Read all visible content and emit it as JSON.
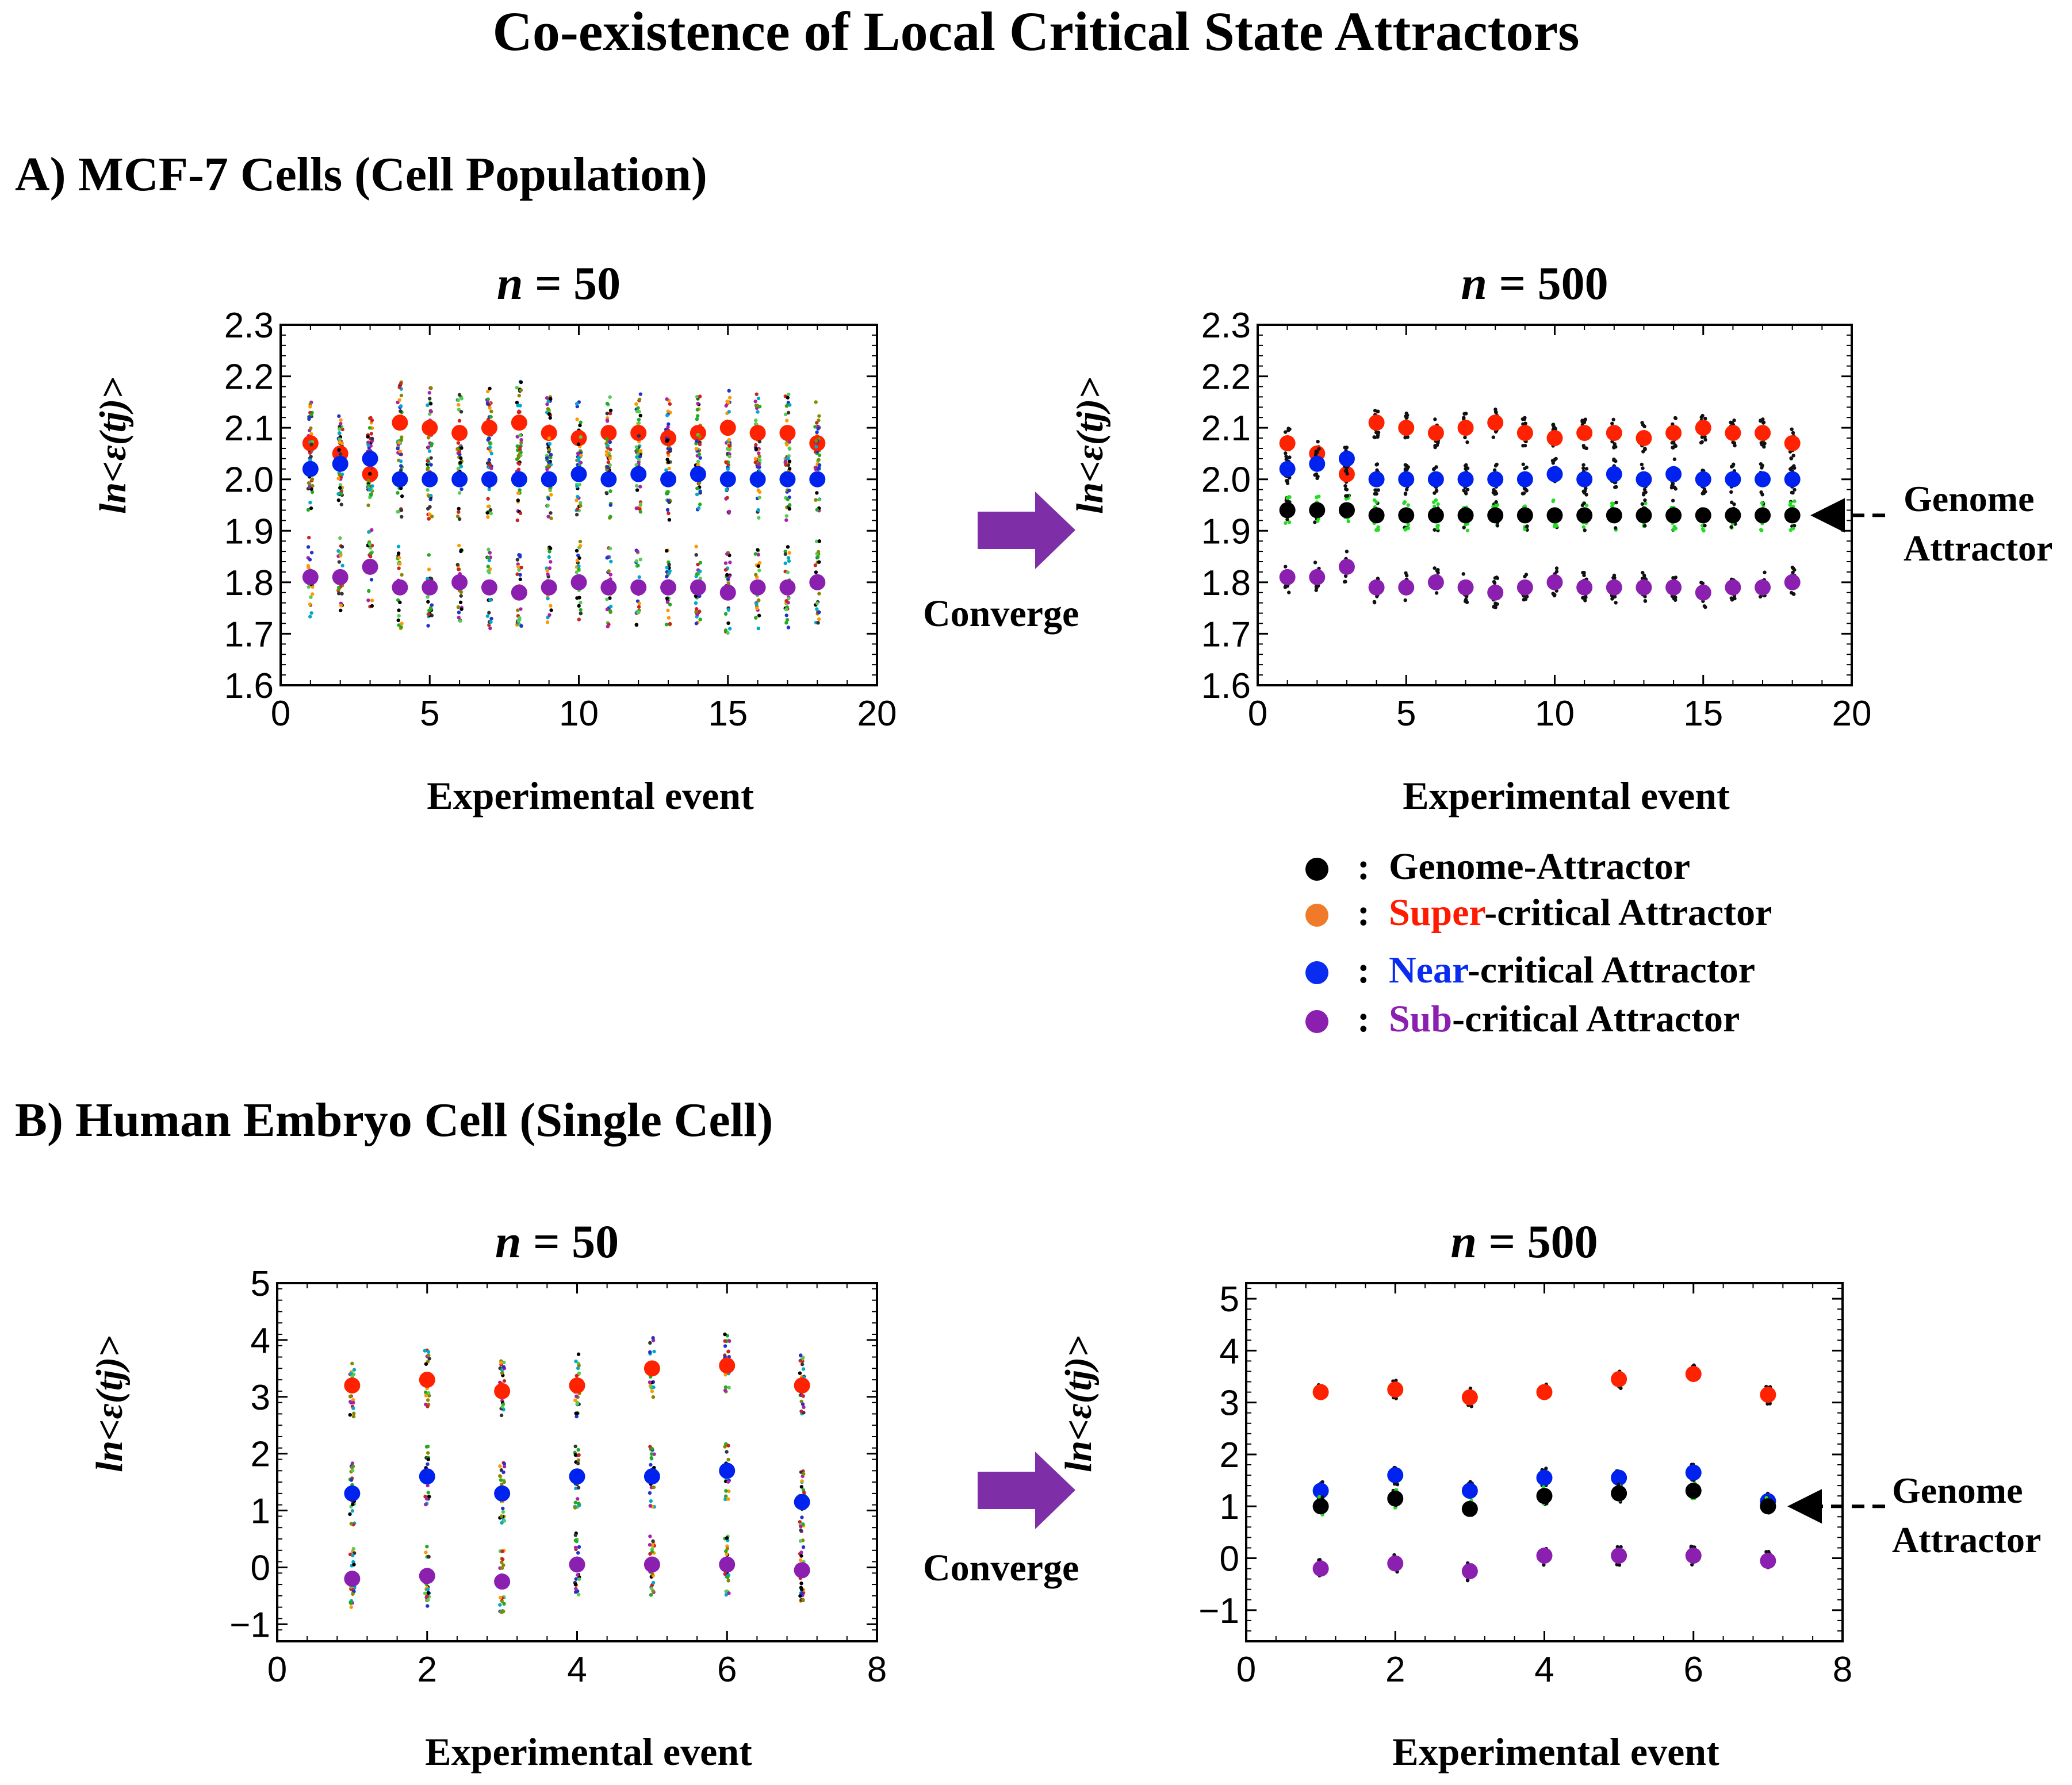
{
  "page_title": "Co-existence of Local Critical State Attractors",
  "sections": {
    "a": "A)   MCF-7 Cells (Cell Population)",
    "b": "B)   Human Embryo Cell (Single Cell)"
  },
  "converge_label": "Converge",
  "genome_note": {
    "line1": "Genome",
    "line2": "Attractor"
  },
  "colors": {
    "genome": "#000000",
    "super": "#ff2200",
    "near": "#0022ee",
    "sub": "#8a1fb0",
    "green": "#22dd22",
    "arrow": "#7e2fa8"
  },
  "legend": [
    {
      "sep": ":",
      "highlight": "",
      "rest": "Genome-Attractor",
      "dot_color": "#000000",
      "hl_color": "#000000"
    },
    {
      "sep": ":",
      "highlight": "Super",
      "rest": "-critical Attractor",
      "dot_color": "#f07a2a",
      "hl_color": "#ff1a00"
    },
    {
      "sep": ":",
      "highlight": "Near",
      "rest": "-critical Attractor",
      "dot_color": "#0a2cf0",
      "hl_color": "#0a2cf0"
    },
    {
      "sep": ":",
      "highlight": "Sub",
      "rest": "-critical Attractor",
      "dot_color": "#8a1fb0",
      "hl_color": "#8a1fb0"
    }
  ],
  "chart_data": [
    {
      "id": "a50",
      "type": "scatter",
      "title_n": "n",
      "title_rest": " = 50",
      "xlabel": "Experimental event",
      "ylabel": "ln<ε(tj)>",
      "xlim": [
        0,
        20
      ],
      "ylim": [
        1.6,
        2.3
      ],
      "xticks": [
        "0",
        "5",
        "10",
        "15",
        "20"
      ],
      "yticks": [
        "1.6",
        "1.7",
        "1.8",
        "1.9",
        "2.0",
        "2.1",
        "2.2",
        "2.3"
      ],
      "x": [
        1,
        2,
        3,
        4,
        5,
        6,
        7,
        8,
        9,
        10,
        11,
        12,
        13,
        14,
        15,
        16,
        17,
        18
      ],
      "series": [
        {
          "name": "Super-critical Attractor",
          "values": [
            2.07,
            2.05,
            2.01,
            2.11,
            2.1,
            2.09,
            2.1,
            2.11,
            2.09,
            2.08,
            2.09,
            2.09,
            2.08,
            2.09,
            2.1,
            2.09,
            2.09,
            2.07
          ]
        },
        {
          "name": "Near-critical Attractor",
          "values": [
            2.02,
            2.03,
            2.04,
            2.0,
            2.0,
            2.0,
            2.0,
            2.0,
            2.0,
            2.01,
            2.0,
            2.01,
            2.0,
            2.01,
            2.0,
            2.0,
            2.0,
            2.0
          ]
        },
        {
          "name": "Sub-critical Attractor",
          "values": [
            1.81,
            1.81,
            1.83,
            1.79,
            1.79,
            1.8,
            1.79,
            1.78,
            1.79,
            1.8,
            1.79,
            1.79,
            1.79,
            1.79,
            1.78,
            1.79,
            1.79,
            1.8
          ]
        }
      ]
    },
    {
      "id": "a500",
      "type": "scatter",
      "title_n": "n",
      "title_rest": " = 500",
      "xlabel": "Experimental event",
      "ylabel": "ln<ε(tj)>",
      "xlim": [
        0,
        20
      ],
      "ylim": [
        1.6,
        2.3
      ],
      "xticks": [
        "0",
        "5",
        "10",
        "15",
        "20"
      ],
      "yticks": [
        "1.6",
        "1.7",
        "1.8",
        "1.9",
        "2.0",
        "2.1",
        "2.2",
        "2.3"
      ],
      "x": [
        1,
        2,
        3,
        4,
        5,
        6,
        7,
        8,
        9,
        10,
        11,
        12,
        13,
        14,
        15,
        16,
        17,
        18
      ],
      "series": [
        {
          "name": "Super-critical Attractor",
          "values": [
            2.07,
            2.05,
            2.01,
            2.11,
            2.1,
            2.09,
            2.1,
            2.11,
            2.09,
            2.08,
            2.09,
            2.09,
            2.08,
            2.09,
            2.1,
            2.09,
            2.09,
            2.07
          ]
        },
        {
          "name": "Near-critical Attractor",
          "values": [
            2.02,
            2.03,
            2.04,
            2.0,
            2.0,
            2.0,
            2.0,
            2.0,
            2.0,
            2.01,
            2.0,
            2.01,
            2.0,
            2.01,
            2.0,
            2.0,
            2.0,
            2.0
          ]
        },
        {
          "name": "Genome-Attractor",
          "values": [
            1.94,
            1.94,
            1.94,
            1.93,
            1.93,
            1.93,
            1.93,
            1.93,
            1.93,
            1.93,
            1.93,
            1.93,
            1.93,
            1.93,
            1.93,
            1.93,
            1.93,
            1.93
          ]
        },
        {
          "name": "Sub-critical Attractor",
          "values": [
            1.81,
            1.81,
            1.83,
            1.79,
            1.79,
            1.8,
            1.79,
            1.78,
            1.79,
            1.8,
            1.79,
            1.79,
            1.79,
            1.79,
            1.78,
            1.79,
            1.79,
            1.8
          ]
        }
      ]
    },
    {
      "id": "b50",
      "type": "scatter",
      "title_n": "n",
      "title_rest": " = 50",
      "xlabel": "Experimental event",
      "ylabel": "ln<ε(tj)>",
      "xlim": [
        0,
        8
      ],
      "ylim": [
        -1.3,
        5
      ],
      "xticks": [
        "0",
        "2",
        "4",
        "6",
        "8"
      ],
      "yticks": [
        "−1",
        "0",
        "1",
        "2",
        "3",
        "4",
        "5"
      ],
      "x": [
        1,
        2,
        3,
        4,
        5,
        6,
        7
      ],
      "series": [
        {
          "name": "Super-critical Attractor",
          "values": [
            3.2,
            3.3,
            3.1,
            3.2,
            3.5,
            3.55,
            3.2
          ]
        },
        {
          "name": "Near-critical Attractor",
          "values": [
            1.3,
            1.6,
            1.3,
            1.6,
            1.6,
            1.7,
            1.15
          ]
        },
        {
          "name": "Sub-critical Attractor",
          "values": [
            -0.2,
            -0.15,
            -0.25,
            0.05,
            0.05,
            0.05,
            -0.05
          ]
        }
      ]
    },
    {
      "id": "b500",
      "type": "scatter",
      "title_n": "n",
      "title_rest": " = 500",
      "xlabel": "Experimental event",
      "ylabel": "ln<ε(tj)>",
      "xlim": [
        0,
        8
      ],
      "ylim": [
        -1.6,
        5.3
      ],
      "xticks": [
        "0",
        "2",
        "4",
        "6",
        "8"
      ],
      "yticks": [
        "−1",
        "0",
        "1",
        "2",
        "3",
        "4",
        "5"
      ],
      "x": [
        1,
        2,
        3,
        4,
        5,
        6,
        7
      ],
      "series": [
        {
          "name": "Super-critical Attractor",
          "values": [
            3.2,
            3.25,
            3.1,
            3.2,
            3.45,
            3.55,
            3.15
          ]
        },
        {
          "name": "Near-critical Attractor",
          "values": [
            1.3,
            1.6,
            1.3,
            1.55,
            1.55,
            1.65,
            1.1
          ]
        },
        {
          "name": "Genome-Attractor",
          "values": [
            1.0,
            1.15,
            0.95,
            1.2,
            1.25,
            1.3,
            1.0
          ]
        },
        {
          "name": "Sub-critical Attractor",
          "values": [
            -0.2,
            -0.1,
            -0.25,
            0.05,
            0.05,
            0.05,
            -0.05
          ]
        }
      ]
    }
  ]
}
